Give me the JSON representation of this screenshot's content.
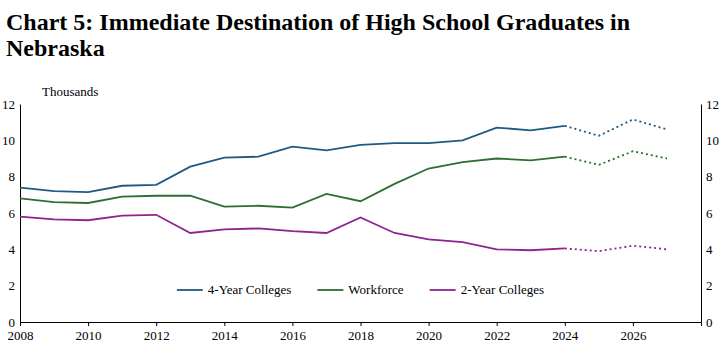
{
  "chart_data": {
    "type": "line",
    "title": "Chart 5: Immediate Destination of High School Graduates in Nebraska",
    "y_label": "Thousands",
    "x": [
      2008,
      2009,
      2010,
      2011,
      2012,
      2013,
      2014,
      2015,
      2016,
      2017,
      2018,
      2019,
      2020,
      2021,
      2022,
      2023,
      2024,
      2025,
      2026,
      2027
    ],
    "series": [
      {
        "name": "4-Year Colleges",
        "color": "#1f5a82",
        "line_style": "solid",
        "values": [
          7.4,
          7.2,
          7.15,
          7.5,
          7.55,
          8.55,
          9.05,
          9.1,
          9.65,
          9.45,
          9.75,
          9.85,
          9.85,
          10.0,
          10.7,
          10.55,
          10.8,
          null,
          null,
          null
        ]
      },
      {
        "name": "Workforce",
        "color": "#2f6e2f",
        "line_style": "solid",
        "values": [
          6.8,
          6.6,
          6.55,
          6.9,
          6.95,
          6.95,
          6.35,
          6.4,
          6.3,
          7.05,
          6.65,
          7.6,
          8.45,
          8.8,
          9.0,
          8.9,
          9.1,
          null,
          null,
          null
        ]
      },
      {
        "name": "2-Year Colleges",
        "color": "#8e2391",
        "line_style": "solid",
        "values": [
          5.8,
          5.65,
          5.6,
          5.85,
          5.9,
          4.9,
          5.1,
          5.15,
          5.0,
          4.9,
          5.75,
          4.9,
          4.55,
          4.4,
          4.0,
          3.95,
          4.05,
          null,
          null,
          null
        ]
      },
      {
        "color": "#1f5a82",
        "line_style": "dotted",
        "values": [
          null,
          null,
          null,
          null,
          null,
          null,
          null,
          null,
          null,
          null,
          null,
          null,
          null,
          null,
          null,
          null,
          10.8,
          10.25,
          11.15,
          10.6
        ]
      },
      {
        "color": "#2f6e2f",
        "line_style": "dotted",
        "values": [
          null,
          null,
          null,
          null,
          null,
          null,
          null,
          null,
          null,
          null,
          null,
          null,
          null,
          null,
          null,
          null,
          9.1,
          8.65,
          9.4,
          9.0
        ]
      },
      {
        "color": "#8e2391",
        "line_style": "dotted",
        "values": [
          null,
          null,
          null,
          null,
          null,
          null,
          null,
          null,
          null,
          null,
          null,
          null,
          null,
          null,
          null,
          null,
          4.05,
          3.9,
          4.2,
          4.0
        ]
      }
    ],
    "xlim": [
      2008,
      2028
    ],
    "xticks": [
      2008,
      2010,
      2012,
      2014,
      2016,
      2018,
      2020,
      2022,
      2024,
      2026
    ],
    "ylim": [
      0,
      12
    ],
    "yticks": [
      0,
      2,
      4,
      6,
      8,
      10,
      12
    ],
    "y2lim": [
      0,
      12
    ],
    "y2ticks": [
      0,
      2,
      4,
      6,
      8,
      10,
      12
    ],
    "grid": false,
    "legend": "bottom"
  }
}
